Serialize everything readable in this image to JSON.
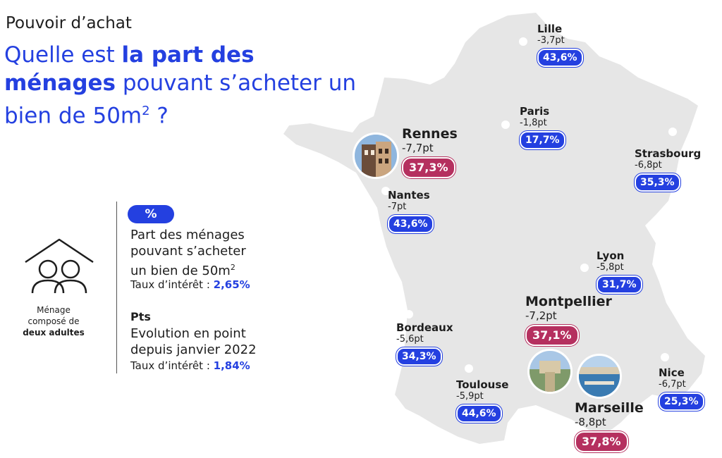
{
  "header": {
    "kicker": "Pouvoir d’achat",
    "question_part1": "Quelle est ",
    "question_bold": "la part des ménages",
    "question_part2": " pouvant s’acheter un bien de 50m",
    "question_sup": "2",
    "question_end": " ?"
  },
  "legend": {
    "pct_symbol": "%",
    "pct_line1": "Part des ménages",
    "pct_line2": "pouvant s’acheter",
    "pct_line3": "un bien de 50m",
    "pct_sup": "2",
    "rate_label_1": "Taux d’intérêt : ",
    "rate_value_1": "2,65%",
    "pts_symbol": "Pts",
    "pts_line1": "Evolution en point",
    "pts_line2": "depuis janvier 2022",
    "rate_label_2": "Taux d’intérêt : ",
    "rate_value_2": "1,84%",
    "household_line1": "Ménage",
    "household_line2": "composé de",
    "household_bold": "deux adultes"
  },
  "colors": {
    "accent_blue": "#2440e0",
    "highlight_red": "#b5305f",
    "map_gray": "#e6e6e6"
  },
  "cities": [
    {
      "name": "Lille",
      "delta": "-3,7pt",
      "share": "43,6%",
      "highlight": false
    },
    {
      "name": "Paris",
      "delta": "-1,8pt",
      "share": "17,7%",
      "highlight": false
    },
    {
      "name": "Rennes",
      "delta": "-7,7pt",
      "share": "37,3%",
      "highlight": true
    },
    {
      "name": "Strasbourg",
      "delta": "-6,8pt",
      "share": "35,3%",
      "highlight": false
    },
    {
      "name": "Nantes",
      "delta": "-7pt",
      "share": "43,6%",
      "highlight": false
    },
    {
      "name": "Lyon",
      "delta": "-5,8pt",
      "share": "31,7%",
      "highlight": false
    },
    {
      "name": "Montpellier",
      "delta": "-7,2pt",
      "share": "37,1%",
      "highlight": true
    },
    {
      "name": "Bordeaux",
      "delta": "-5,6pt",
      "share": "34,3%",
      "highlight": false
    },
    {
      "name": "Toulouse",
      "delta": "-5,9pt",
      "share": "44,6%",
      "highlight": false
    },
    {
      "name": "Nice",
      "delta": "-6,7pt",
      "share": "25,3%",
      "highlight": false
    },
    {
      "name": "Marseille",
      "delta": "-8,8pt",
      "share": "37,8%",
      "highlight": true
    }
  ]
}
